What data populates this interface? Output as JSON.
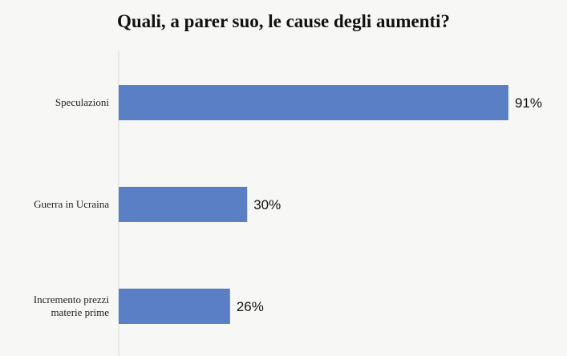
{
  "chart_data": {
    "type": "bar",
    "orientation": "horizontal",
    "title": "Quali, a parer suo, le cause degli aumenti?",
    "categories": [
      "Speculazioni",
      "Guerra in Ucraina",
      "Incremento prezzi materie prime"
    ],
    "category_lines": [
      [
        "Speculazioni"
      ],
      [
        "Guerra in Ucraina"
      ],
      [
        "Incremento prezzi",
        "materie prime"
      ]
    ],
    "values": [
      91,
      30,
      26
    ],
    "value_labels": [
      "91%",
      "30%",
      "26%"
    ],
    "xlim": [
      0,
      100
    ],
    "grid": false,
    "bar_color": "#5b7fc4"
  }
}
